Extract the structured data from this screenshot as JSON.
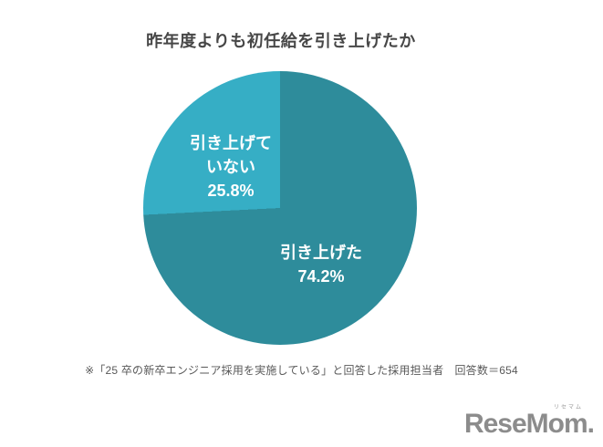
{
  "chart_data": {
    "type": "pie",
    "title": "昨年度よりも初任給を引き上げたか",
    "start_angle_deg": 0,
    "direction": "clockwise",
    "label_position": "inside",
    "label_color": "#ffffff",
    "title_color": "#474747",
    "slices": [
      {
        "name": "引き上げた",
        "value": 74.2,
        "color": "#2E8C9B",
        "label_lines": [
          "引き上げた",
          "74.2%"
        ]
      },
      {
        "name": "引き上げていない",
        "value": 25.8,
        "color": "#36AEC5",
        "label_lines": [
          "引き上げて",
          "いない",
          "25.8%"
        ]
      }
    ]
  },
  "footnote": {
    "text": "※「25 卒の新卒エンジニア採用を実施している」と回答した採用担当者　回答数＝654",
    "color": "#595959"
  },
  "logo": {
    "text": "ReseMom.",
    "ruby": "リセマム",
    "color": "#8c8c8c"
  }
}
